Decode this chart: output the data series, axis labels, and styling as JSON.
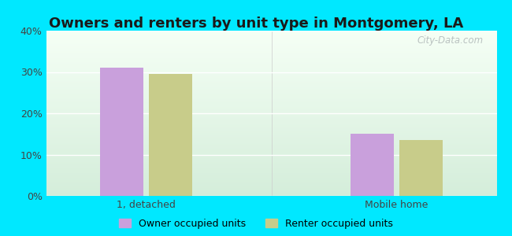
{
  "title": "Owners and renters by unit type in Montgomery, LA",
  "categories": [
    "1, detached",
    "Mobile home"
  ],
  "owner_values": [
    31.0,
    15.0
  ],
  "renter_values": [
    29.5,
    13.5
  ],
  "owner_color": "#c9a0dc",
  "renter_color": "#c8cc8a",
  "owner_label": "Owner occupied units",
  "renter_label": "Renter occupied units",
  "ylim": [
    0,
    40
  ],
  "yticks": [
    0,
    10,
    20,
    30,
    40
  ],
  "ytick_labels": [
    "0%",
    "10%",
    "20%",
    "30%",
    "40%"
  ],
  "outer_bg": "#00e8ff",
  "plot_bg_bottom": "#d4edda",
  "plot_bg_top": "#f5fff5",
  "bar_width": 0.35,
  "title_fontsize": 13,
  "watermark": "City-Data.com"
}
